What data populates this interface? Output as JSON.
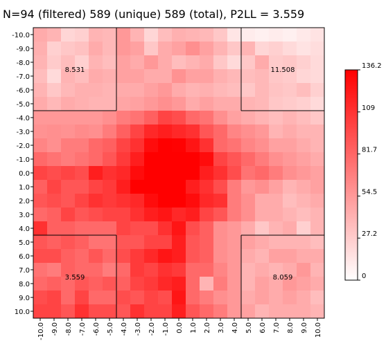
{
  "chart_data": {
    "type": "heatmap",
    "title": "N=94 (filtered) 589 (unique) 589 (total), P2LL = 3.559",
    "x_ticks": [
      "-10.0",
      "-9.0",
      "-8.0",
      "-7.0",
      "-6.0",
      "-5.0",
      "-4.0",
      "-3.0",
      "-2.0",
      "-1.0",
      "0.0",
      "1.0",
      "2.0",
      "3.0",
      "4.0",
      "5.0",
      "6.0",
      "7.0",
      "8.0",
      "9.0",
      "10.0"
    ],
    "y_ticks": [
      "-10.0",
      "-9.0",
      "-8.0",
      "-7.0",
      "-6.0",
      "-5.0",
      "-4.0",
      "-3.0",
      "-2.0",
      "-1.0",
      "0.0",
      "1.0",
      "2.0",
      "3.0",
      "4.0",
      "5.0",
      "6.0",
      "7.0",
      "8.0",
      "9.0",
      "10.0"
    ],
    "colorbar": {
      "min": 0,
      "max": 136.2,
      "ticks": [
        "136.2",
        "109",
        "81.7",
        "54.5",
        "27.2",
        "0"
      ],
      "low_color": "#ffffff",
      "high_color": "#ff0000"
    },
    "region_labels": [
      {
        "text": "8.531",
        "region": "top-left"
      },
      {
        "text": "11.508",
        "region": "top-right"
      },
      {
        "text": "3.559",
        "region": "bottom-left"
      },
      {
        "text": "8.059",
        "region": "bottom-right"
      }
    ],
    "values": [
      [
        45,
        40,
        22,
        25,
        40,
        38,
        55,
        40,
        22,
        35,
        42,
        40,
        38,
        30,
        14,
        10,
        8,
        10,
        8,
        12,
        15
      ],
      [
        42,
        25,
        30,
        33,
        45,
        38,
        55,
        50,
        30,
        45,
        50,
        60,
        50,
        40,
        30,
        40,
        22,
        25,
        20,
        15,
        18
      ],
      [
        40,
        28,
        35,
        25,
        40,
        35,
        50,
        45,
        55,
        45,
        35,
        40,
        45,
        30,
        20,
        30,
        45,
        28,
        30,
        25,
        20
      ],
      [
        35,
        20,
        40,
        35,
        45,
        42,
        50,
        50,
        45,
        45,
        58,
        50,
        50,
        42,
        38,
        35,
        38,
        30,
        28,
        22,
        20
      ],
      [
        40,
        30,
        38,
        42,
        42,
        40,
        45,
        45,
        50,
        55,
        45,
        40,
        42,
        38,
        35,
        30,
        38,
        32,
        30,
        35,
        25
      ],
      [
        45,
        38,
        45,
        42,
        40,
        40,
        48,
        50,
        55,
        60,
        55,
        45,
        50,
        45,
        45,
        40,
        38,
        30,
        28,
        25,
        20
      ],
      [
        55,
        55,
        55,
        55,
        55,
        60,
        70,
        75,
        85,
        100,
        95,
        80,
        75,
        60,
        50,
        45,
        40,
        35,
        40,
        35,
        30
      ],
      [
        58,
        60,
        58,
        62,
        60,
        70,
        85,
        100,
        115,
        120,
        115,
        110,
        90,
        80,
        65,
        60,
        55,
        40,
        45,
        40,
        40
      ],
      [
        65,
        60,
        70,
        70,
        80,
        85,
        100,
        110,
        130,
        136,
        135,
        125,
        110,
        80,
        75,
        65,
        60,
        50,
        50,
        45,
        40
      ],
      [
        80,
        75,
        70,
        75,
        80,
        90,
        105,
        120,
        136,
        136,
        136,
        136,
        130,
        100,
        90,
        80,
        70,
        60,
        55,
        50,
        45
      ],
      [
        100,
        95,
        100,
        95,
        120,
        110,
        115,
        130,
        136,
        136,
        136,
        136,
        120,
        110,
        95,
        75,
        80,
        70,
        60,
        55,
        50
      ],
      [
        85,
        100,
        90,
        90,
        100,
        105,
        120,
        136,
        136,
        136,
        136,
        120,
        110,
        95,
        70,
        55,
        60,
        50,
        40,
        45,
        50
      ],
      [
        90,
        95,
        90,
        100,
        110,
        105,
        110,
        115,
        130,
        136,
        136,
        130,
        115,
        110,
        70,
        60,
        45,
        45,
        35,
        40,
        45
      ],
      [
        80,
        85,
        100,
        90,
        95,
        100,
        100,
        110,
        120,
        125,
        115,
        120,
        100,
        90,
        70,
        60,
        45,
        45,
        40,
        35,
        40
      ],
      [
        110,
        85,
        85,
        80,
        80,
        80,
        100,
        95,
        95,
        110,
        125,
        95,
        85,
        60,
        55,
        45,
        30,
        40,
        45,
        25,
        40
      ],
      [
        90,
        85,
        90,
        85,
        75,
        75,
        90,
        90,
        100,
        100,
        120,
        90,
        85,
        60,
        55,
        50,
        45,
        40,
        40,
        40,
        35
      ],
      [
        95,
        95,
        85,
        80,
        90,
        80,
        95,
        105,
        115,
        125,
        120,
        90,
        85,
        60,
        55,
        45,
        40,
        50,
        50,
        45,
        45
      ],
      [
        75,
        70,
        85,
        80,
        80,
        70,
        80,
        105,
        100,
        110,
        105,
        80,
        80,
        65,
        55,
        40,
        45,
        40,
        45,
        55,
        40
      ],
      [
        80,
        85,
        80,
        90,
        85,
        90,
        85,
        100,
        105,
        115,
        120,
        80,
        40,
        70,
        55,
        40,
        50,
        45,
        55,
        50,
        45
      ],
      [
        95,
        100,
        80,
        100,
        80,
        80,
        95,
        90,
        100,
        95,
        125,
        80,
        70,
        60,
        55,
        45,
        50,
        45,
        50,
        45,
        35
      ],
      [
        100,
        100,
        90,
        110,
        95,
        95,
        90,
        110,
        100,
        100,
        120,
        90,
        80,
        70,
        55,
        50,
        40,
        45,
        45,
        45,
        40
      ]
    ]
  }
}
